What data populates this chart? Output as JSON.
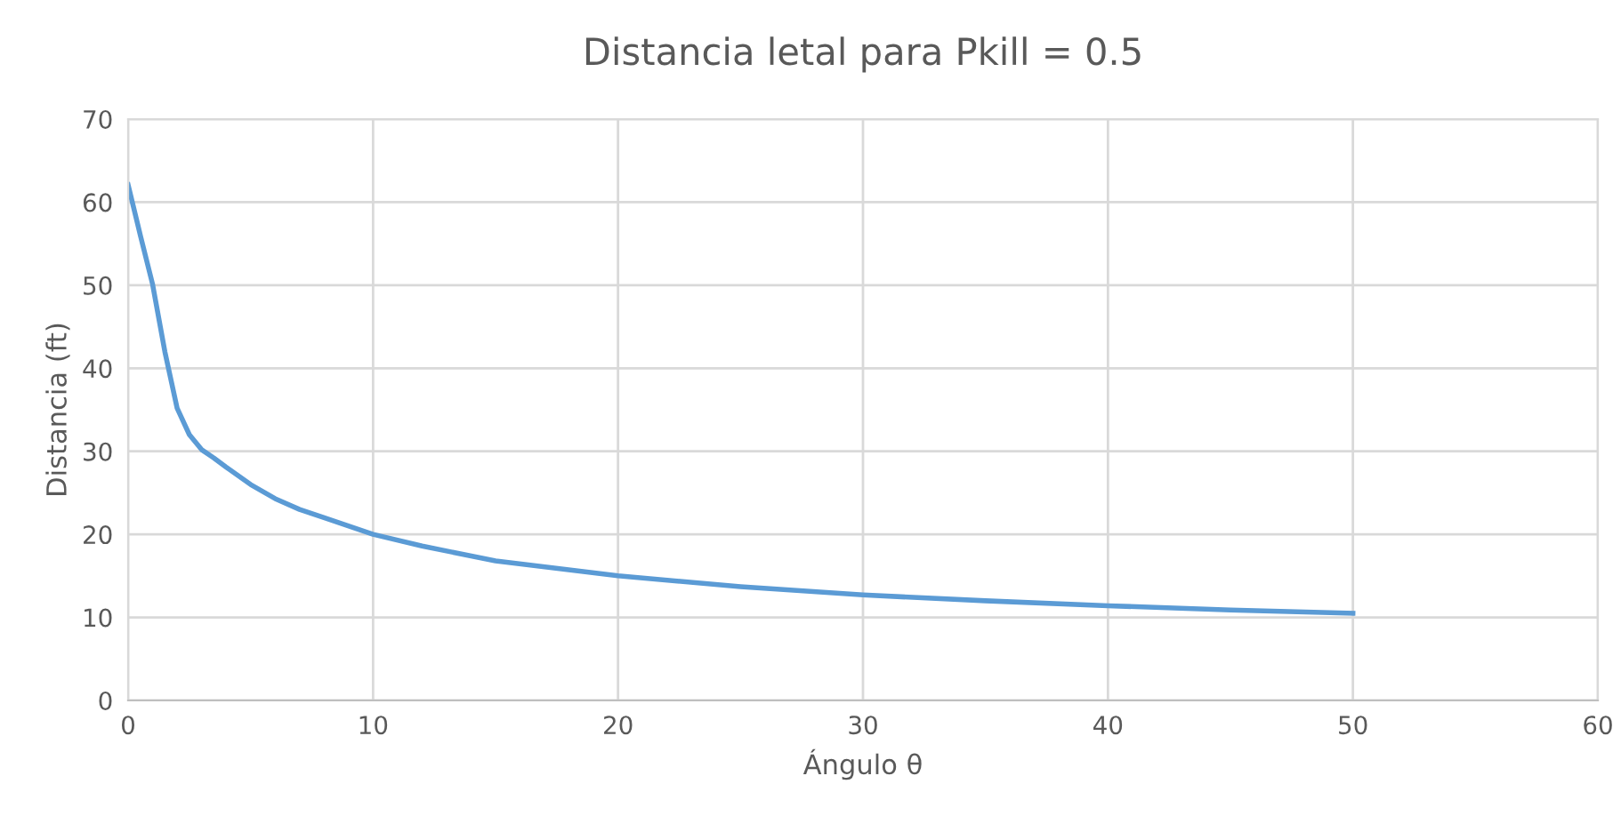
{
  "chart_data": {
    "type": "line",
    "title": "Distancia letal para Pkill = 0.5",
    "xlabel": "Ángulo θ",
    "ylabel": "Distancia (ft)",
    "series": [
      {
        "color": "#5b9bd5",
        "x": [
          0,
          0.5,
          1,
          1.5,
          2,
          2.5,
          3,
          3.5,
          4,
          5,
          6,
          7,
          8,
          10,
          12,
          15,
          20,
          25,
          30,
          35,
          40,
          45,
          50
        ],
        "values": [
          62.1,
          56,
          50.1,
          42,
          35.2,
          32,
          30.2,
          29.2,
          28.1,
          26,
          24.3,
          23,
          22,
          20,
          18.6,
          16.8,
          15,
          13.7,
          12.7,
          12,
          11.4,
          10.9,
          10.5
        ]
      }
    ],
    "xlim": [
      0,
      60
    ],
    "xticks": [
      0,
      10,
      20,
      30,
      40,
      50,
      60
    ],
    "ylim": [
      0,
      70
    ],
    "yticks": [
      0,
      10,
      20,
      30,
      40,
      50,
      60,
      70
    ],
    "grid": true,
    "marker": "none",
    "line_style": "solid"
  }
}
